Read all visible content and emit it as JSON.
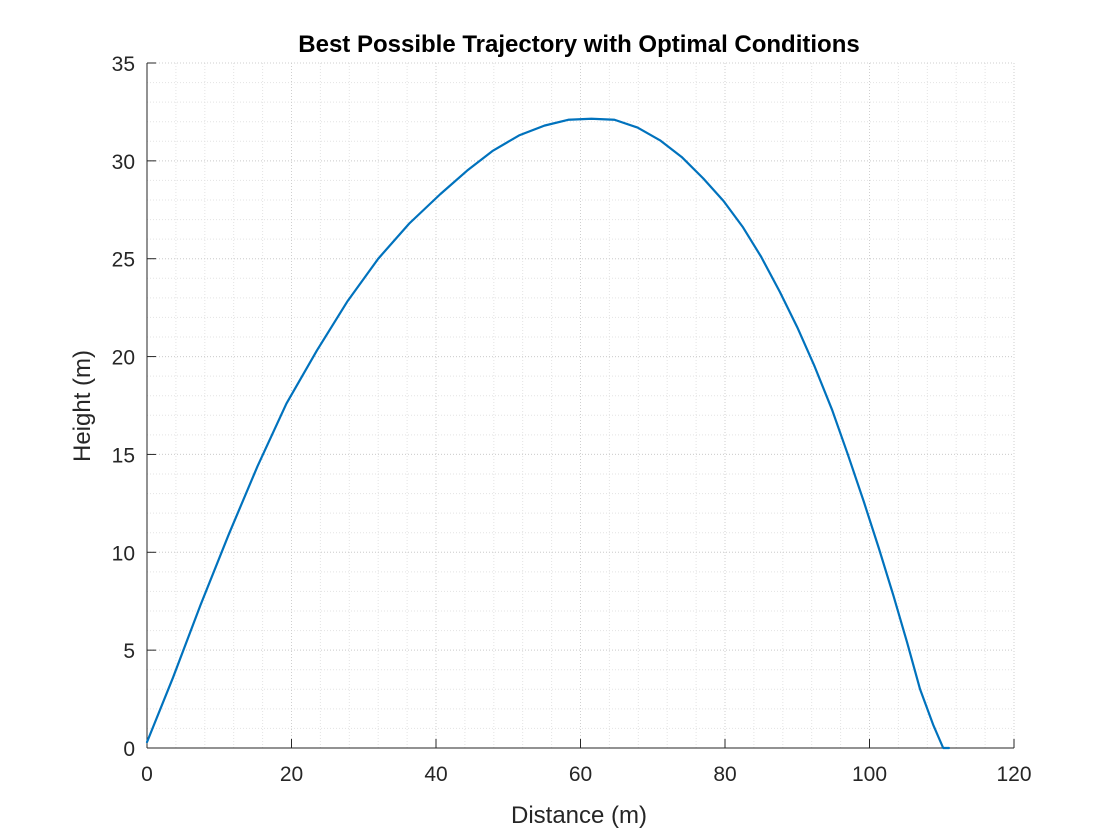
{
  "chart_data": {
    "type": "line",
    "title": "Best Possible Trajectory with Optimal Conditions",
    "xlabel": "Distance (m)",
    "ylabel": "Height (m)",
    "xlim": [
      0,
      120
    ],
    "ylim": [
      0,
      35
    ],
    "xticks": [
      0,
      20,
      40,
      60,
      80,
      100,
      120
    ],
    "yticks": [
      0,
      5,
      10,
      15,
      20,
      25,
      30,
      35
    ],
    "xtick_labels": [
      "0",
      "20",
      "40",
      "60",
      "80",
      "100",
      "120"
    ],
    "ytick_labels": [
      "0",
      "5",
      "10",
      "15",
      "20",
      "25",
      "30",
      "35"
    ],
    "grid": "major and minor, dotted",
    "line_color": "#0072BD",
    "series": [
      {
        "x": [
          0,
          3.6,
          7.4,
          11.3,
          15.3,
          19.3,
          23.5,
          27.7,
          32.0,
          36.3,
          40.6,
          44.3,
          47.8,
          51.5,
          55.0,
          58.3,
          61.5,
          64.7,
          67.9,
          71.0,
          74.0,
          77.0,
          79.8,
          82.5,
          85.0,
          87.6,
          90.0,
          92.4,
          94.8,
          97.0,
          99.2,
          101.3,
          103.3,
          105.2,
          107.0,
          108.8,
          110.2,
          111.0
        ],
        "y": [
          0.3,
          3.6,
          7.3,
          10.9,
          14.4,
          17.6,
          20.3,
          22.8,
          25.0,
          26.8,
          28.3,
          29.5,
          30.5,
          31.3,
          31.8,
          32.1,
          32.15,
          32.1,
          31.7,
          31.05,
          30.2,
          29.1,
          27.95,
          26.6,
          25.1,
          23.3,
          21.5,
          19.5,
          17.3,
          15.0,
          12.6,
          10.2,
          7.8,
          5.4,
          3.0,
          1.2,
          0.0,
          0.0
        ]
      }
    ]
  }
}
